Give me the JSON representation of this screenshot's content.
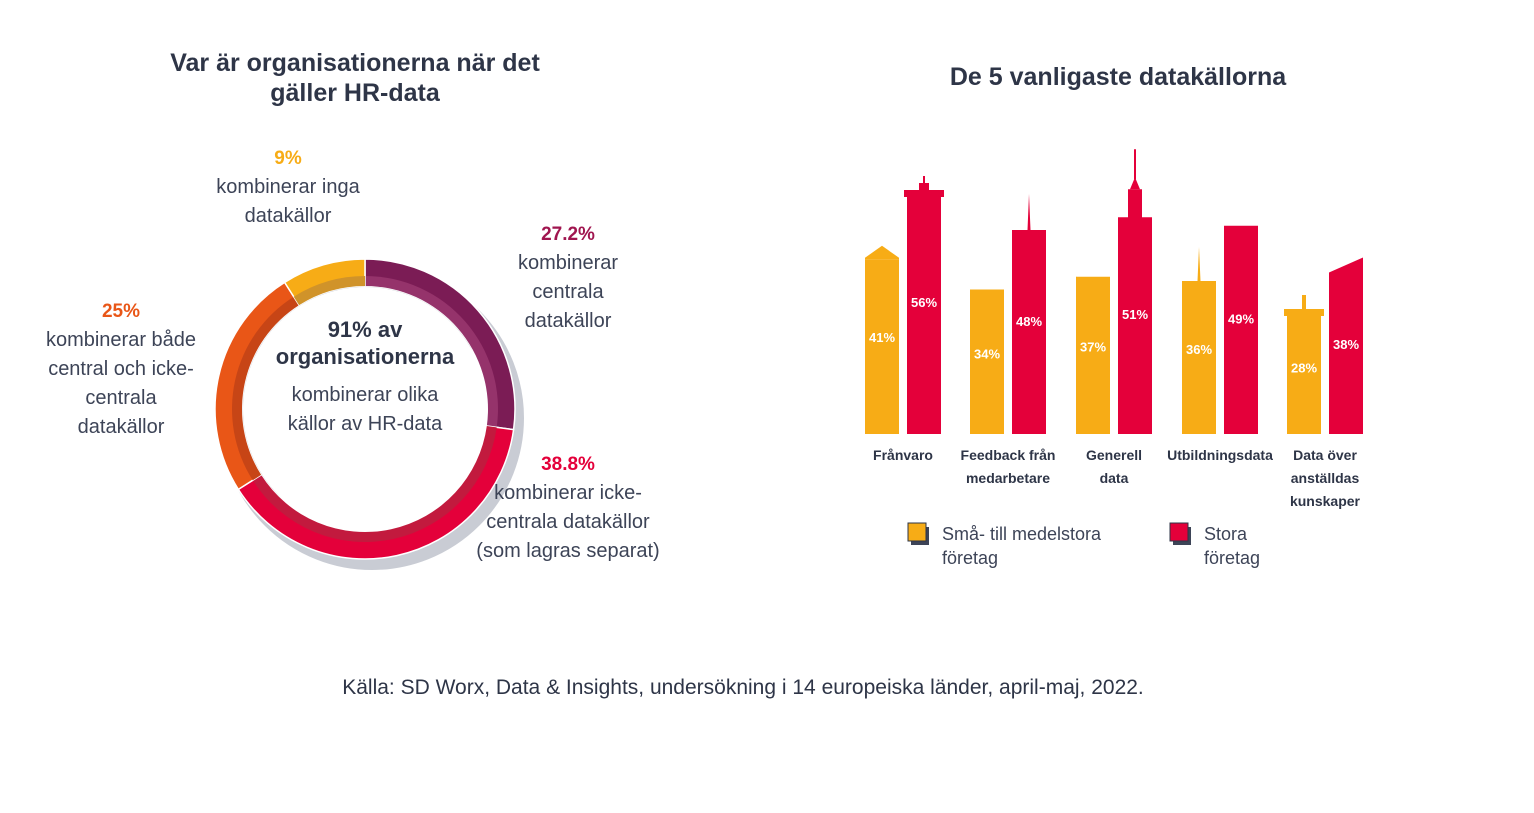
{
  "chart_data": [
    {
      "type": "pie",
      "title": "Var är organisationerna när det gäller HR-data",
      "title_lines": [
        "Var är organisationerna när det",
        "gäller HR-data"
      ],
      "center": {
        "headline_lines": [
          "91% av",
          "organisationerna"
        ],
        "text_lines": [
          "kombinerar olika",
          "källor av HR-data"
        ]
      },
      "slices": [
        {
          "value": 27.2,
          "label": "27.2%",
          "lines": [
            "kombinerar",
            "centrala",
            "datakällor"
          ],
          "color": "#7b1c55",
          "inner_color": "#95336b",
          "label_color": "#a0154f"
        },
        {
          "value": 38.8,
          "label": "38.8%",
          "lines": [
            "kombinerar icke-",
            "centrala datakällor",
            "(som lagras separat)"
          ],
          "color": "#e4003a",
          "inner_color": "#c21a3e",
          "label_color": "#e4003a"
        },
        {
          "value": 25,
          "label": "25%",
          "lines": [
            "kombinerar både",
            "central och icke-",
            "centrala",
            "datakällor"
          ],
          "color": "#e95617",
          "inner_color": "#c74516",
          "label_color": "#e95617"
        },
        {
          "value": 9,
          "label": "9%",
          "lines": [
            "kombinerar inga",
            "datakällor"
          ],
          "color": "#f7ac16",
          "inner_color": "#d0932a",
          "label_color": "#f7ac16"
        }
      ]
    },
    {
      "type": "bar",
      "title": "De 5 vanligaste datakällorna",
      "categories": [
        "Frånvaro",
        "Feedback från medarbetare",
        "Generell data",
        "Utbildningsdata",
        "Data över anställdas kunskaper"
      ],
      "category_lines": [
        [
          "Frånvaro"
        ],
        [
          "Feedback från",
          "medarbetare"
        ],
        [
          "Generell",
          "data"
        ],
        [
          "Utbildningsdata"
        ],
        [
          "Data över",
          "anställdas",
          "kunskaper"
        ]
      ],
      "series": [
        {
          "name": "Små- till medelstora företag",
          "name_lines": [
            "Små- till medelstora",
            "företag"
          ],
          "values": [
            41,
            34,
            37,
            36,
            28
          ],
          "labels": [
            "41%",
            "34%",
            "37%",
            "36%",
            "28%"
          ],
          "color": "#f7ac16"
        },
        {
          "name": "Stora företag",
          "name_lines": [
            "Stora",
            "företag"
          ],
          "values": [
            56,
            48,
            51,
            49,
            38
          ],
          "labels": [
            "56%",
            "48%",
            "51%",
            "49%",
            "38%"
          ],
          "color": "#e4003a"
        }
      ],
      "ylim": [
        0,
        60
      ],
      "grid": false,
      "legend": "bottom"
    }
  ],
  "source": "Källa: SD Worx, Data & Insights, undersökning i 14 europeiska länder, april-maj, 2022."
}
